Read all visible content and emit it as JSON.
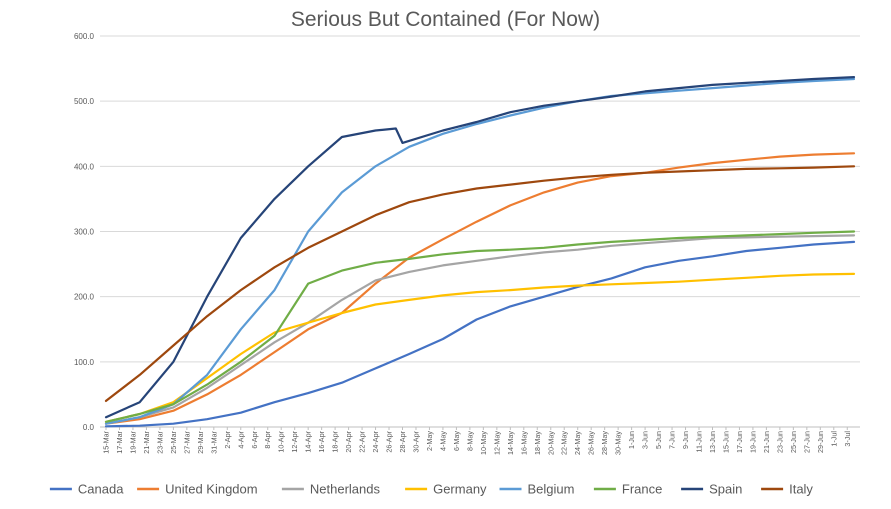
{
  "chart_data": {
    "type": "line",
    "title": "Serious But Contained (For Now)",
    "xlabel": "",
    "ylabel": "",
    "ylim": [
      0,
      600
    ],
    "y_ticks": [
      "0.0",
      "100.0",
      "200.0",
      "300.0",
      "400.0",
      "500.0",
      "600.0"
    ],
    "grid": "horizontal",
    "legend_position": "bottom",
    "x_tick_labels": [
      "15-Mar",
      "17-Mar",
      "19-Mar",
      "21-Mar",
      "23-Mar",
      "25-Mar",
      "27-Mar",
      "29-Mar",
      "31-Mar",
      "2-Apr",
      "4-Apr",
      "6-Apr",
      "8-Apr",
      "10-Apr",
      "12-Apr",
      "14-Apr",
      "16-Apr",
      "18-Apr",
      "20-Apr",
      "22-Apr",
      "24-Apr",
      "26-Apr",
      "28-Apr",
      "30-Apr",
      "2-May",
      "4-May",
      "6-May",
      "8-May",
      "10-May",
      "12-May",
      "14-May",
      "16-May",
      "18-May",
      "20-May",
      "22-May",
      "24-May",
      "26-May",
      "28-May",
      "30-May",
      "1-Jun",
      "3-Jun",
      "5-Jun",
      "7-Jun",
      "9-Jun",
      "11-Jun",
      "13-Jun",
      "15-Jun",
      "17-Jun",
      "19-Jun",
      "21-Jun",
      "23-Jun",
      "25-Jun",
      "27-Jun",
      "29-Jun",
      "1-Jul",
      "3-Jul"
    ],
    "x_day_start": 0,
    "x_day_end": 111,
    "series": [
      {
        "name": "Canada",
        "color": "#4472C4",
        "x": [
          0,
          5,
          10,
          15,
          20,
          25,
          30,
          35,
          40,
          45,
          50,
          55,
          60,
          65,
          70,
          75,
          80,
          85,
          90,
          95,
          100,
          105,
          111
        ],
        "values": [
          1,
          2,
          5,
          12,
          22,
          38,
          52,
          68,
          90,
          112,
          135,
          165,
          185,
          200,
          215,
          228,
          245,
          255,
          262,
          270,
          275,
          280,
          284
        ]
      },
      {
        "name": "United Kingdom",
        "color": "#ED7D31",
        "x": [
          0,
          5,
          10,
          15,
          20,
          25,
          30,
          35,
          40,
          45,
          50,
          55,
          60,
          65,
          70,
          75,
          80,
          85,
          90,
          95,
          100,
          105,
          111
        ],
        "values": [
          5,
          12,
          25,
          50,
          80,
          115,
          150,
          175,
          220,
          260,
          288,
          315,
          340,
          360,
          375,
          385,
          390,
          398,
          405,
          410,
          415,
          418,
          420
        ]
      },
      {
        "name": "Netherlands",
        "color": "#A5A5A5",
        "x": [
          0,
          5,
          10,
          15,
          20,
          25,
          30,
          35,
          40,
          45,
          50,
          55,
          60,
          65,
          70,
          75,
          80,
          85,
          90,
          95,
          100,
          105,
          111
        ],
        "values": [
          5,
          15,
          30,
          60,
          95,
          130,
          160,
          195,
          225,
          238,
          248,
          255,
          262,
          268,
          272,
          278,
          282,
          286,
          290,
          291,
          292,
          293,
          294
        ]
      },
      {
        "name": "Germany",
        "color": "#FFC000",
        "x": [
          0,
          5,
          10,
          15,
          20,
          25,
          30,
          35,
          40,
          45,
          50,
          55,
          60,
          65,
          70,
          75,
          80,
          85,
          90,
          95,
          100,
          105,
          111
        ],
        "values": [
          8,
          20,
          38,
          75,
          112,
          145,
          160,
          175,
          188,
          195,
          202,
          207,
          210,
          214,
          217,
          219,
          221,
          223,
          226,
          229,
          232,
          234,
          235
        ]
      },
      {
        "name": "Belgium",
        "color": "#5B9BD5",
        "x": [
          0,
          5,
          10,
          15,
          20,
          25,
          30,
          35,
          40,
          45,
          50,
          55,
          60,
          65,
          70,
          75,
          80,
          85,
          90,
          95,
          100,
          105,
          111
        ],
        "values": [
          5,
          15,
          35,
          80,
          150,
          210,
          300,
          360,
          400,
          430,
          450,
          465,
          478,
          490,
          500,
          508,
          512,
          516,
          520,
          524,
          528,
          531,
          534
        ]
      },
      {
        "name": "France",
        "color": "#70AD47",
        "x": [
          0,
          5,
          10,
          15,
          20,
          25,
          30,
          35,
          40,
          45,
          50,
          55,
          60,
          65,
          70,
          75,
          80,
          85,
          90,
          95,
          100,
          105,
          111
        ],
        "values": [
          8,
          20,
          35,
          65,
          100,
          140,
          220,
          240,
          252,
          258,
          265,
          270,
          272,
          275,
          280,
          284,
          287,
          290,
          292,
          294,
          296,
          298,
          300
        ]
      },
      {
        "name": "Spain",
        "color": "#264478",
        "x": [
          0,
          5,
          10,
          15,
          20,
          25,
          30,
          35,
          40,
          43,
          44,
          50,
          55,
          60,
          65,
          70,
          75,
          80,
          85,
          90,
          95,
          100,
          105,
          111
        ],
        "values": [
          15,
          38,
          100,
          200,
          290,
          350,
          400,
          445,
          455,
          458,
          436,
          455,
          468,
          483,
          493,
          500,
          507,
          515,
          520,
          525,
          528,
          531,
          534,
          537
        ]
      },
      {
        "name": "Italy",
        "color": "#9E480E",
        "x": [
          0,
          5,
          10,
          15,
          20,
          25,
          30,
          35,
          40,
          45,
          50,
          55,
          60,
          65,
          70,
          75,
          80,
          85,
          90,
          95,
          100,
          105,
          111
        ],
        "values": [
          40,
          80,
          125,
          170,
          210,
          245,
          275,
          300,
          325,
          345,
          357,
          366,
          372,
          378,
          383,
          387,
          390,
          392,
          394,
          396,
          397,
          398,
          400
        ]
      }
    ]
  }
}
